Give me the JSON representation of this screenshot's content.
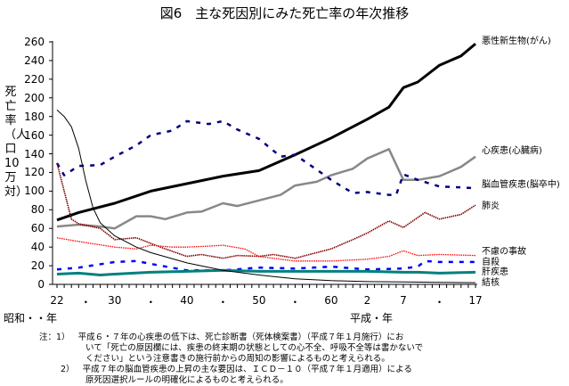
{
  "title": "図6　主な死因別にみた死亡率の年次推移",
  "chart_data": {
    "type": "line",
    "title": "図6　主な死因別にみた死亡率の年次推移",
    "ylabel": "死亡率（人口10万対）",
    "xlabel_showa": "昭和・・年",
    "xlabel_heisei": "平成・年",
    "ylim": [
      0,
      260
    ],
    "xlim": [
      1947,
      2005
    ],
    "yticks": [
      "0",
      "20",
      "40",
      "60",
      "80",
      "100",
      "120",
      "140",
      "160",
      "180",
      "200",
      "220",
      "240",
      "260"
    ],
    "xticks": [
      {
        "year": 1947,
        "label": "22"
      },
      {
        "year": 1951,
        "label": "・"
      },
      {
        "year": 1955,
        "label": "30"
      },
      {
        "year": 1960,
        "label": "・"
      },
      {
        "year": 1965,
        "label": "40"
      },
      {
        "year": 1970,
        "label": "・"
      },
      {
        "year": 1975,
        "label": "50"
      },
      {
        "year": 1980,
        "label": "・"
      },
      {
        "year": 1985,
        "label": "60"
      },
      {
        "year": 1990,
        "label": "2"
      },
      {
        "year": 1995,
        "label": "7"
      },
      {
        "year": 2000,
        "label": "・"
      },
      {
        "year": 2005,
        "label": "17"
      }
    ],
    "series": [
      {
        "name": "悪性新生物(がん)",
        "color": "#000000",
        "style": "thick",
        "x": [
          1947,
          1950,
          1955,
          1960,
          1965,
          1970,
          1975,
          1980,
          1985,
          1990,
          1993,
          1995,
          1997,
          2000,
          2003,
          2005
        ],
        "y": [
          69,
          77,
          87,
          100,
          108,
          116,
          122,
          139,
          157,
          177,
          190,
          211,
          217,
          235,
          245,
          258
        ]
      },
      {
        "name": "心疾患(心臓病)",
        "color": "#888888",
        "style": "solid",
        "x": [
          1947,
          1950,
          1953,
          1955,
          1958,
          1960,
          1962,
          1965,
          1967,
          1970,
          1972,
          1975,
          1978,
          1980,
          1983,
          1985,
          1988,
          1990,
          1993,
          1995,
          1997,
          2000,
          2003,
          2005
        ],
        "y": [
          62,
          64,
          62,
          60,
          73,
          73,
          70,
          77,
          78,
          87,
          84,
          90,
          96,
          106,
          110,
          117,
          124,
          135,
          145,
          112,
          112,
          116,
          126,
          137
        ]
      },
      {
        "name": "脳血管疾患(脳卒中)",
        "color": "#000080",
        "style": "dashed",
        "x": [
          1947,
          1948,
          1950,
          1953,
          1955,
          1958,
          1960,
          1963,
          1965,
          1968,
          1970,
          1972,
          1975,
          1978,
          1980,
          1983,
          1985,
          1988,
          1990,
          1993,
          1994,
          1995,
          1997,
          2000,
          2003,
          2005
        ],
        "y": [
          130,
          117,
          127,
          128,
          137,
          149,
          160,
          165,
          175,
          172,
          175,
          166,
          156,
          137,
          139,
          123,
          112,
          98,
          99,
          96,
          96,
          118,
          112,
          105,
          104,
          103
        ]
      },
      {
        "name": "肺炎",
        "color": "#800000",
        "style": "dotted-thick",
        "x": [
          1947,
          1948,
          1949,
          1950,
          1953,
          1955,
          1958,
          1960,
          1962,
          1965,
          1967,
          1970,
          1972,
          1975,
          1977,
          1980,
          1983,
          1985,
          1988,
          1990,
          1993,
          1995,
          1998,
          2000,
          2003,
          2005
        ],
        "y": [
          130,
          100,
          70,
          65,
          60,
          48,
          50,
          44,
          38,
          30,
          32,
          28,
          31,
          30,
          32,
          28,
          34,
          38,
          48,
          55,
          68,
          61,
          77,
          70,
          75,
          85
        ]
      },
      {
        "name": "不慮の事故",
        "color": "#ff0000",
        "style": "dotted",
        "x": [
          1947,
          1950,
          1955,
          1958,
          1960,
          1963,
          1965,
          1968,
          1970,
          1973,
          1975,
          1978,
          1980,
          1985,
          1990,
          1993,
          1995,
          1997,
          2000,
          2005
        ],
        "y": [
          50,
          46,
          40,
          38,
          42,
          40,
          40,
          41,
          42,
          38,
          30,
          27,
          25,
          25,
          27,
          30,
          36,
          31,
          32,
          31
        ]
      },
      {
        "name": "自殺",
        "color": "#0000ff",
        "style": "dashed",
        "x": [
          1947,
          1950,
          1955,
          1958,
          1960,
          1965,
          1970,
          1975,
          1980,
          1985,
          1990,
          1995,
          1997,
          1998,
          2000,
          2005
        ],
        "y": [
          16,
          18,
          24,
          25,
          22,
          15,
          15,
          18,
          17,
          19,
          16,
          17,
          19,
          25,
          24,
          24
        ]
      },
      {
        "name": "肝疾患",
        "color": "#008080",
        "style": "thick",
        "x": [
          1947,
          1950,
          1953,
          1955,
          1960,
          1965,
          1970,
          1975,
          1980,
          1985,
          1990,
          1995,
          1997,
          2000,
          2005
        ],
        "y": [
          11,
          12,
          10,
          11,
          13,
          14,
          15,
          14,
          14,
          14,
          14,
          13,
          13,
          12,
          13
        ]
      },
      {
        "name": "結核",
        "color": "#000000",
        "style": "thin",
        "x": [
          1947,
          1948,
          1949,
          1950,
          1951,
          1952,
          1953,
          1955,
          1958,
          1960,
          1965,
          1970,
          1975,
          1980,
          1985,
          1990,
          1995,
          2000,
          2005
        ],
        "y": [
          187,
          180,
          169,
          146,
          111,
          82,
          66,
          52,
          40,
          34,
          23,
          15,
          10,
          6,
          4,
          3,
          2.6,
          2.1,
          1.8
        ]
      }
    ]
  },
  "notes": {
    "prefix": "注：",
    "items": [
      {
        "num": "1）",
        "lines": [
          "平成６・７年の心疾患の低下は、死亡診断書（死体検案書）（平成７年１月施行）にお",
          "いて「死亡の原因欄には、疾患の終末期の状態としての心不全、呼吸不全等は書かないで",
          "ください」という注意書きの施行前からの周知の影響によるものと考えられる。"
        ]
      },
      {
        "num": "2）",
        "lines": [
          "平成７年の脳血管疾患の上昇の主な要因は、ＩＣＤ－１０（平成７年１月適用）による",
          "原死因選択ルールの明確化によるものと考えられる。"
        ]
      }
    ]
  }
}
